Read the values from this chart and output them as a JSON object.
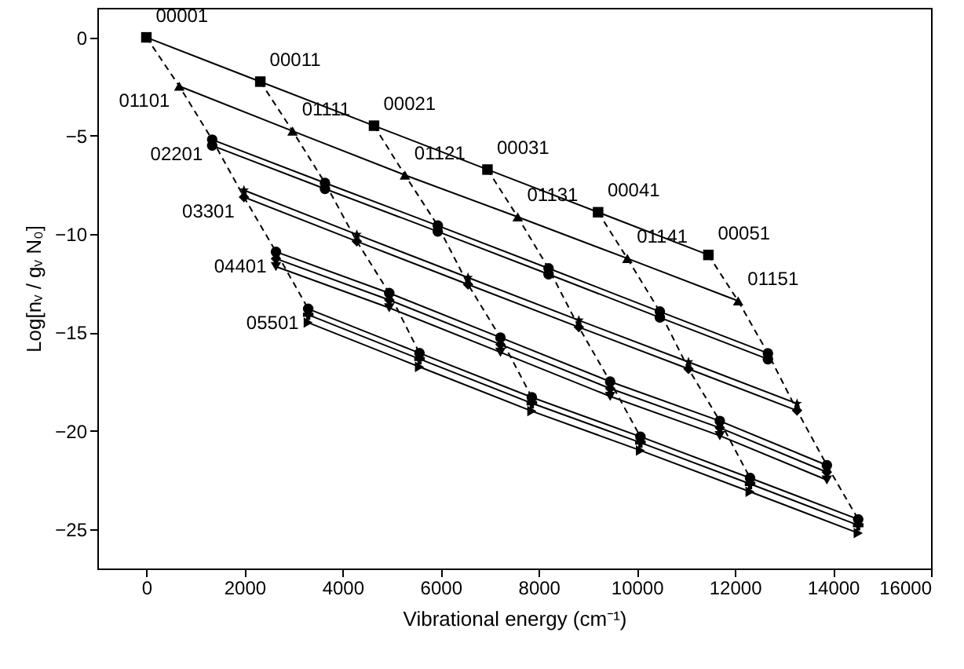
{
  "chart_data": {
    "type": "line",
    "xlabel": "Vibrational energy (cm⁻¹)",
    "ylabel": "Log[nᵥ / gᵥ N₀]",
    "xlim": [
      -1000,
      16000
    ],
    "xticks": [
      0,
      2000,
      4000,
      6000,
      8000,
      10000,
      12000,
      14000,
      16000
    ],
    "ylim": [
      -27,
      1.5
    ],
    "yticks": [
      -25,
      -20,
      -15,
      -10,
      -5,
      0
    ],
    "series": [
      {
        "color": "#000000",
        "marker": "square",
        "line_style": "solid",
        "x": [
          0,
          2323,
          4642,
          6955,
          9211,
          11460
        ],
        "values": [
          0,
          -2.25,
          -4.49,
          -6.72,
          -8.89,
          -11.06
        ]
      },
      {
        "color": "#000000",
        "marker": "triangle",
        "line_style": "solid",
        "x": [
          671,
          2981,
          5272,
          7572,
          9808,
          12067
        ],
        "values": [
          -2.48,
          -4.76,
          -7.0,
          -9.13,
          -11.24,
          -13.4
        ]
      },
      {
        "color": "#000000",
        "marker": "circle",
        "line_style": "solid",
        "x": [
          1342,
          3642,
          5942,
          8201,
          10470,
          12674
        ],
        "values": [
          -5.2,
          -7.4,
          -9.57,
          -11.74,
          -13.94,
          -16.06
        ]
      },
      {
        "color": "#000000",
        "marker": "circle",
        "line_style": "solid",
        "x": [
          1342,
          3642,
          5942,
          8201,
          10470,
          12674
        ],
        "values": [
          -5.5,
          -7.7,
          -9.87,
          -12.04,
          -14.24,
          -16.36
        ]
      },
      {
        "color": "#000000",
        "marker": "diamond",
        "line_style": "solid",
        "x": [
          1990,
          4291,
          6559,
          8818,
          11054,
          13268
        ],
        "values": [
          -8.12,
          -10.37,
          -12.56,
          -14.73,
          -16.85,
          -18.97
        ]
      },
      {
        "color": "#000000",
        "marker": "star",
        "line_style": "solid",
        "x": [
          1990,
          4291,
          6559,
          8818,
          11054,
          13268
        ],
        "values": [
          -7.77,
          -10.02,
          -12.21,
          -14.38,
          -16.5,
          -18.62
        ]
      },
      {
        "color": "#000000",
        "marker": "circle",
        "line_style": "solid",
        "x": [
          2642,
          4952,
          7220,
          9457,
          11693,
          13876
        ],
        "values": [
          -10.9,
          -13.0,
          -15.26,
          -17.5,
          -19.5,
          -21.75
        ]
      },
      {
        "color": "#000000",
        "marker": "diamond",
        "line_style": "solid",
        "x": [
          2642,
          4952,
          7220,
          9457,
          11693,
          13876
        ],
        "values": [
          -11.25,
          -13.35,
          -15.61,
          -17.85,
          -19.85,
          -22.1
        ]
      },
      {
        "color": "#000000",
        "marker": "triangle-down",
        "line_style": "solid",
        "x": [
          2642,
          4952,
          7220,
          9457,
          11693,
          13876
        ],
        "values": [
          -11.65,
          -13.75,
          -16.01,
          -18.25,
          -20.25,
          -22.5
        ]
      },
      {
        "color": "#000000",
        "marker": "circle",
        "line_style": "solid",
        "x": [
          3300,
          5569,
          7860,
          10074,
          12310,
          14515
        ],
        "values": [
          -13.8,
          -16.05,
          -18.3,
          -20.3,
          -22.4,
          -24.5
        ]
      },
      {
        "color": "#000000",
        "marker": "cross",
        "line_style": "solid",
        "x": [
          3300,
          5569,
          7860,
          10074,
          12310,
          14515
        ],
        "values": [
          -14.1,
          -16.35,
          -18.6,
          -20.6,
          -22.7,
          -24.8
        ]
      },
      {
        "color": "#000000",
        "marker": "triangle-right",
        "line_style": "solid",
        "x": [
          3300,
          5569,
          7860,
          10074,
          12310,
          14515
        ],
        "values": [
          -14.5,
          -16.75,
          -19.0,
          -21.0,
          -23.1,
          -25.2
        ]
      },
      {
        "color": "#000000",
        "marker": "none",
        "line_style": "dashed",
        "x": [
          0,
          671,
          1342,
          1990,
          2642,
          3300
        ],
        "values": [
          0,
          -2.48,
          -5.2,
          -8.12,
          -10.9,
          -13.8
        ]
      },
      {
        "color": "#000000",
        "marker": "none",
        "line_style": "dashed",
        "x": [
          2323,
          2981,
          3642,
          4291,
          4952,
          5569
        ],
        "values": [
          -2.25,
          -4.76,
          -7.4,
          -10.37,
          -13.0,
          -16.05
        ]
      },
      {
        "color": "#000000",
        "marker": "none",
        "line_style": "dashed",
        "x": [
          4642,
          5272,
          5942,
          6559,
          7220,
          7860
        ],
        "values": [
          -4.49,
          -7.0,
          -9.57,
          -12.56,
          -15.26,
          -18.3
        ]
      },
      {
        "color": "#000000",
        "marker": "none",
        "line_style": "dashed",
        "x": [
          6955,
          7572,
          8201,
          8818,
          9457,
          10074
        ],
        "values": [
          -6.72,
          -9.13,
          -11.74,
          -14.73,
          -17.5,
          -20.3
        ]
      },
      {
        "color": "#000000",
        "marker": "none",
        "line_style": "dashed",
        "x": [
          9211,
          9808,
          10470,
          11054,
          11693,
          12310
        ],
        "values": [
          -8.89,
          -11.24,
          -13.94,
          -16.85,
          -19.5,
          -22.4
        ]
      },
      {
        "color": "#000000",
        "marker": "none",
        "line_style": "dashed",
        "x": [
          11460,
          12067,
          12674,
          13268,
          13876,
          14515
        ],
        "values": [
          -11.06,
          -13.4,
          -16.06,
          -18.97,
          -21.75,
          -24.5
        ]
      }
    ],
    "annotations": [
      {
        "text": "00001",
        "x": 0,
        "y": 0
      },
      {
        "text": "00011",
        "x": 2323,
        "y": -2.25
      },
      {
        "text": "00021",
        "x": 4642,
        "y": -4.49
      },
      {
        "text": "00031",
        "x": 6955,
        "y": -6.72
      },
      {
        "text": "00041",
        "x": 9211,
        "y": -8.89
      },
      {
        "text": "00051",
        "x": 11460,
        "y": -11.06
      },
      {
        "text": "01101",
        "x": 671,
        "y": -2.48
      },
      {
        "text": "01111",
        "x": 2981,
        "y": -4.76
      },
      {
        "text": "01121",
        "x": 5272,
        "y": -7.0
      },
      {
        "text": "01131",
        "x": 7572,
        "y": -9.13
      },
      {
        "text": "01141",
        "x": 9808,
        "y": -11.24
      },
      {
        "text": "01151",
        "x": 12067,
        "y": -13.4
      },
      {
        "text": "02201",
        "x": 1342,
        "y": -5.2
      },
      {
        "text": "03301",
        "x": 1990,
        "y": -8.12
      },
      {
        "text": "04401",
        "x": 2642,
        "y": -10.9
      },
      {
        "text": "05501",
        "x": 3300,
        "y": -13.8
      }
    ]
  }
}
